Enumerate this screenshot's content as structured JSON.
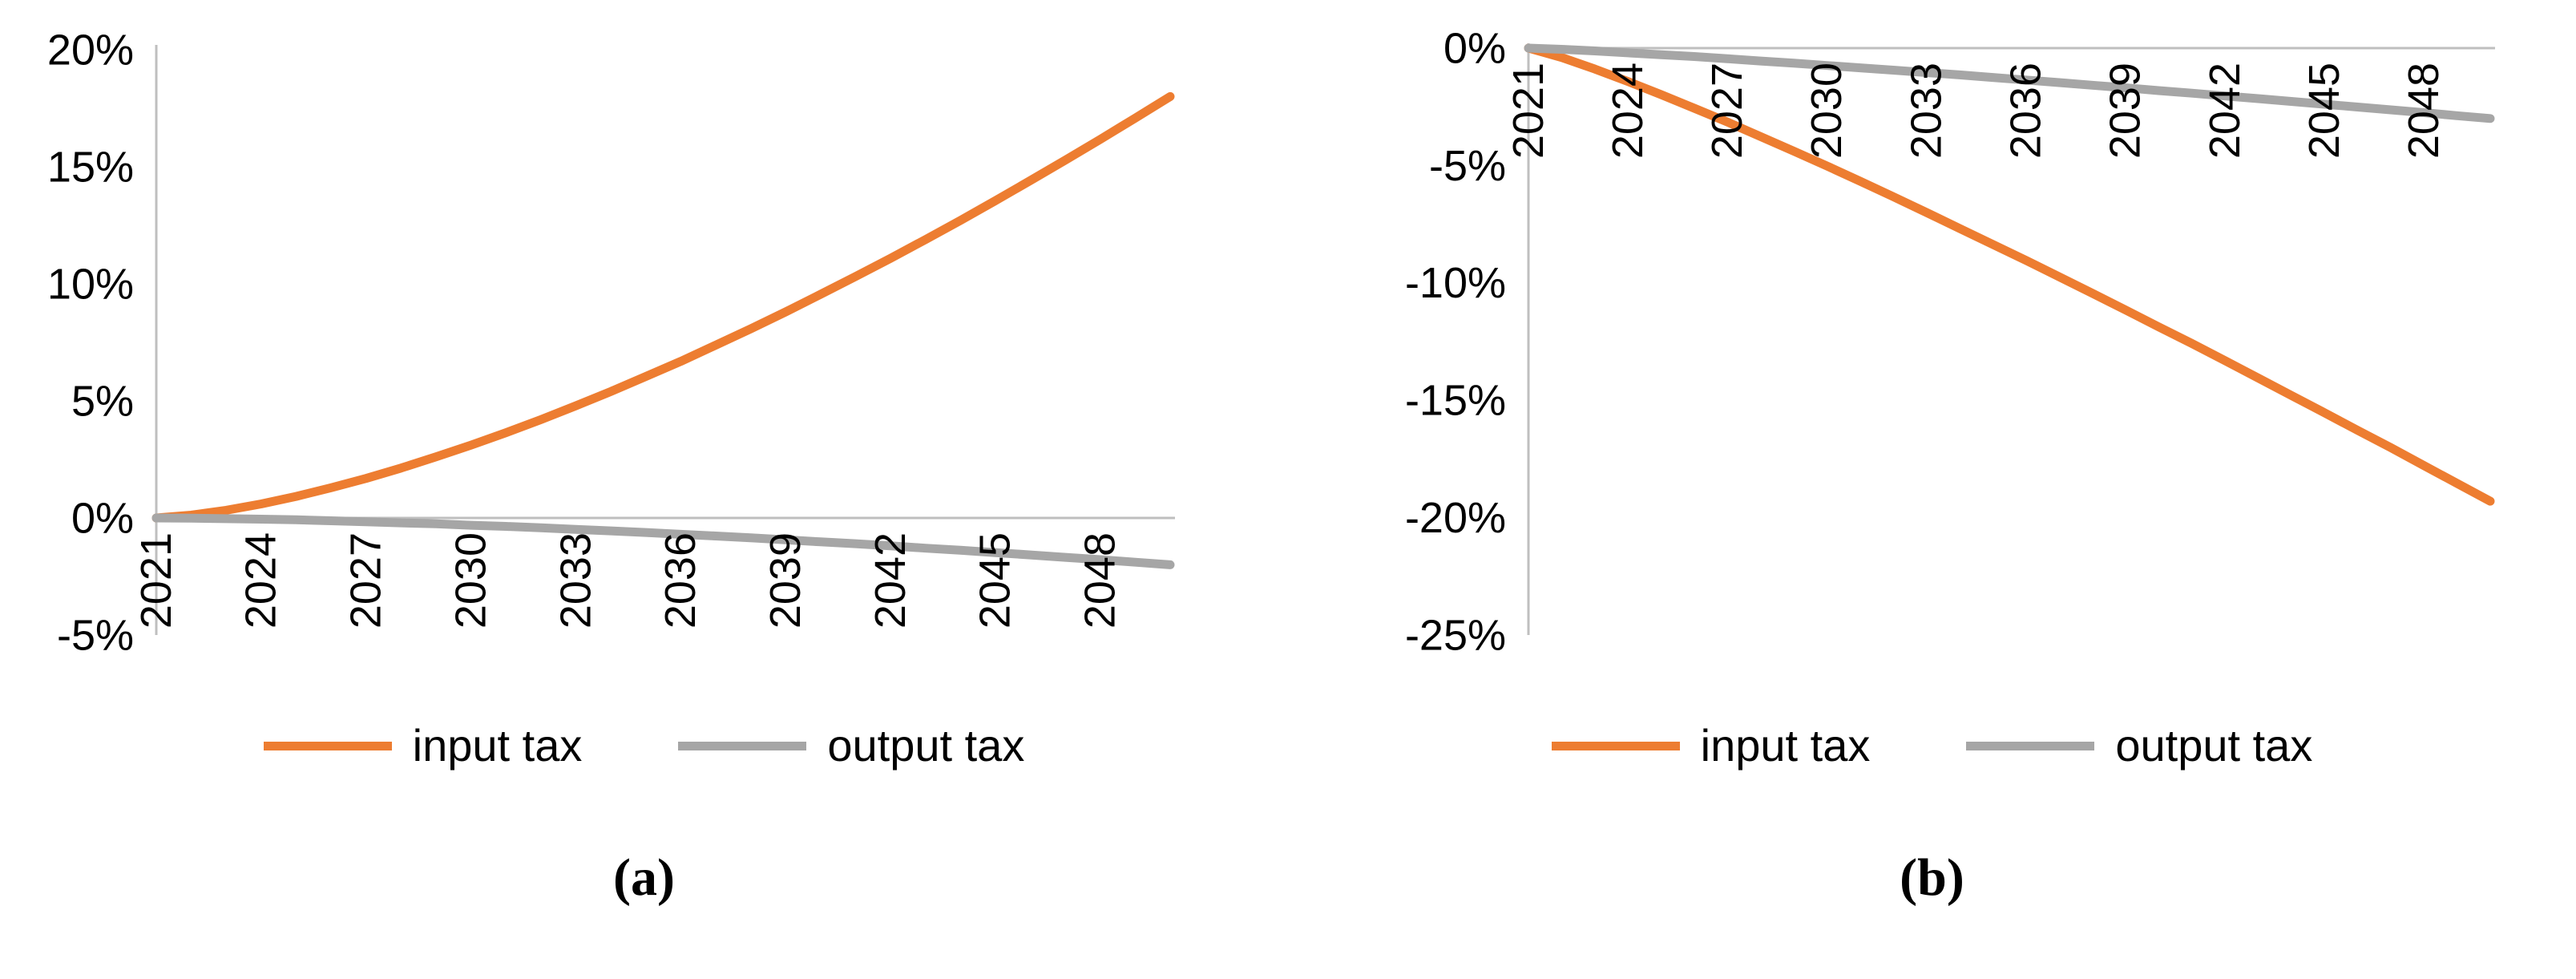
{
  "figure": {
    "captions": {
      "a": "(a)",
      "b": "(b)"
    }
  },
  "colors": {
    "input_tax": "#ED7D31",
    "output_tax": "#A6A6A6",
    "axis": "#BFBFBF",
    "text": "#000000"
  },
  "chart_data": [
    {
      "type": "line",
      "panel": "a",
      "title": "",
      "xlabel": "",
      "ylabel": "",
      "grid": false,
      "legend_position": "bottom",
      "axis_color": "#BFBFBF",
      "x_range": [
        2021,
        2050
      ],
      "x_ticks": [
        2021,
        2024,
        2027,
        2030,
        2033,
        2036,
        2039,
        2042,
        2045,
        2048
      ],
      "ylim": [
        -5,
        20
      ],
      "y_ticks": [
        20,
        15,
        10,
        5,
        0,
        -5
      ],
      "y_tick_format": "percent",
      "x": [
        2021,
        2022,
        2023,
        2024,
        2025,
        2026,
        2027,
        2028,
        2029,
        2030,
        2031,
        2032,
        2033,
        2034,
        2035,
        2036,
        2037,
        2038,
        2039,
        2040,
        2041,
        2042,
        2043,
        2044,
        2045,
        2046,
        2047,
        2048,
        2049,
        2050
      ],
      "series": [
        {
          "name": "input tax",
          "color": "#ED7D31",
          "values": [
            0,
            0.12,
            0.33,
            0.6,
            0.92,
            1.29,
            1.69,
            2.13,
            2.61,
            3.11,
            3.64,
            4.2,
            4.79,
            5.4,
            6.04,
            6.69,
            7.38,
            8.08,
            8.8,
            9.55,
            10.31,
            11.09,
            11.89,
            12.71,
            13.55,
            14.41,
            15.28,
            16.17,
            17.08,
            18.0
          ]
        },
        {
          "name": "output tax",
          "color": "#A6A6A6",
          "values": [
            0,
            -0.01,
            -0.03,
            -0.05,
            -0.08,
            -0.12,
            -0.16,
            -0.21,
            -0.25,
            -0.31,
            -0.36,
            -0.42,
            -0.49,
            -0.55,
            -0.62,
            -0.7,
            -0.77,
            -0.85,
            -0.93,
            -1.02,
            -1.1,
            -1.19,
            -1.29,
            -1.38,
            -1.48,
            -1.58,
            -1.68,
            -1.78,
            -1.89,
            -2.0
          ]
        }
      ]
    },
    {
      "type": "line",
      "panel": "b",
      "title": "",
      "xlabel": "",
      "ylabel": "",
      "grid": false,
      "legend_position": "bottom",
      "axis_color": "#BFBFBF",
      "x_range": [
        2021,
        2050
      ],
      "x_ticks": [
        2021,
        2024,
        2027,
        2030,
        2033,
        2036,
        2039,
        2042,
        2045,
        2048
      ],
      "ylim": [
        -25,
        0
      ],
      "y_ticks": [
        0,
        -5,
        -10,
        -15,
        -20,
        -25
      ],
      "y_tick_format": "percent",
      "x": [
        2021,
        2022,
        2023,
        2024,
        2025,
        2026,
        2027,
        2028,
        2029,
        2030,
        2031,
        2032,
        2033,
        2034,
        2035,
        2036,
        2037,
        2038,
        2039,
        2040,
        2041,
        2042,
        2043,
        2044,
        2045,
        2046,
        2047,
        2048,
        2049,
        2050
      ],
      "series": [
        {
          "name": "input tax",
          "color": "#ED7D31",
          "values": [
            0,
            -0.4,
            -0.89,
            -1.42,
            -1.98,
            -2.56,
            -3.15,
            -3.77,
            -4.39,
            -5.02,
            -5.67,
            -6.33,
            -7.0,
            -7.68,
            -8.36,
            -9.04,
            -9.74,
            -10.44,
            -11.15,
            -11.87,
            -12.58,
            -13.31,
            -14.05,
            -14.79,
            -15.53,
            -16.28,
            -17.02,
            -17.78,
            -18.54,
            -19.3
          ]
        },
        {
          "name": "output tax",
          "color": "#A6A6A6",
          "values": [
            0,
            -0.05,
            -0.12,
            -0.2,
            -0.28,
            -0.36,
            -0.45,
            -0.55,
            -0.64,
            -0.74,
            -0.84,
            -0.94,
            -1.04,
            -1.14,
            -1.25,
            -1.36,
            -1.47,
            -1.58,
            -1.69,
            -1.81,
            -1.92,
            -2.04,
            -2.15,
            -2.27,
            -2.39,
            -2.51,
            -2.63,
            -2.75,
            -2.88,
            -3.0
          ]
        }
      ]
    }
  ]
}
